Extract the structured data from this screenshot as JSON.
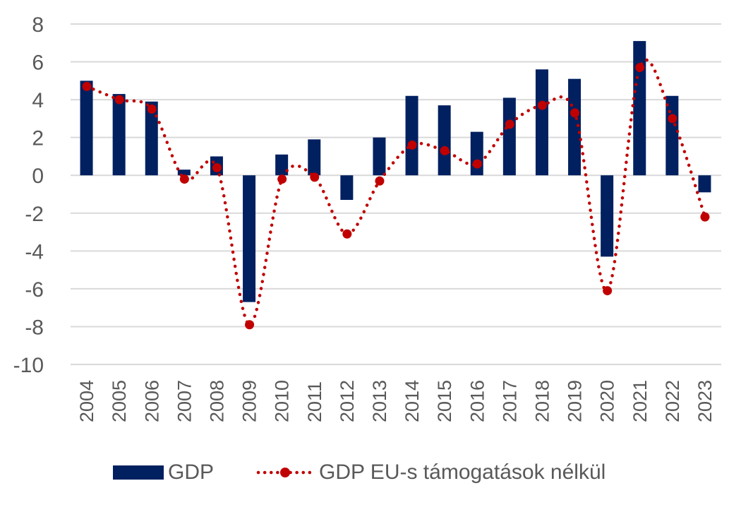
{
  "chart_data": {
    "type": "bar+line",
    "title": "",
    "xlabel": "",
    "ylabel": "",
    "ylim": [
      -10,
      8
    ],
    "yticks": [
      8,
      6,
      4,
      2,
      0,
      -2,
      -4,
      -6,
      -8,
      -10
    ],
    "grid": true,
    "legend_position": "bottom",
    "categories": [
      "2004",
      "2005",
      "2006",
      "2007",
      "2008",
      "2009",
      "2010",
      "2011",
      "2012",
      "2013",
      "2014",
      "2015",
      "2016",
      "2017",
      "2018",
      "2019",
      "2020",
      "2021",
      "2022",
      "2023"
    ],
    "series": [
      {
        "name": "GDP",
        "type": "bar",
        "color": "#002060",
        "values": [
          5.0,
          4.3,
          3.9,
          0.3,
          1.0,
          -6.7,
          1.1,
          1.9,
          -1.3,
          2.0,
          4.2,
          3.7,
          2.3,
          4.1,
          5.6,
          5.1,
          -4.3,
          7.1,
          4.2,
          -0.9
        ]
      },
      {
        "name": "GDP EU-s támogatások nélkül",
        "type": "line",
        "style": "dotted-with-markers",
        "color": "#C00000",
        "values": [
          4.7,
          4.0,
          3.5,
          -0.2,
          0.4,
          -7.9,
          -0.2,
          -0.1,
          -3.1,
          -0.3,
          1.6,
          1.3,
          0.6,
          2.7,
          3.7,
          3.3,
          -6.1,
          5.7,
          3.0,
          -2.2
        ]
      }
    ]
  }
}
